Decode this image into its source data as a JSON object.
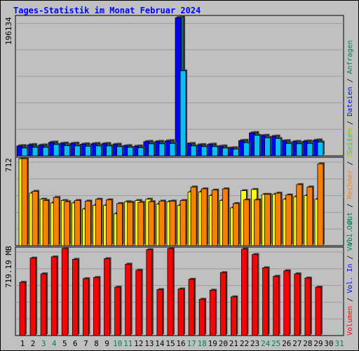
{
  "title": "Tages-Statistik im Monat Februar 2024",
  "colors": {
    "hits": "#00805a",
    "files": "#0000ff",
    "pages": "#00c0ff",
    "visits": "#ffff00",
    "sites": "#ff8000",
    "kbytes": "#ff0000",
    "weekend": "#00805a",
    "weekday": "#000000"
  },
  "legend_top": {
    "sep": "/",
    "hits": "Anfragen",
    "files": "Dateien",
    "pages": "Seiten"
  },
  "legend_mid": {
    "sep": "/",
    "visits": "Besuche",
    "sites": "Rechner",
    "out": "Vol. Out"
  },
  "legend_bot": {
    "sep": "/",
    "in": "Vol. In",
    "kbytes": "Volumen"
  },
  "chart_data": {
    "type": "bar",
    "categories": [
      "1",
      "2",
      "3",
      "4",
      "5",
      "6",
      "7",
      "8",
      "9",
      "10",
      "11",
      "12",
      "13",
      "14",
      "15",
      "16",
      "17",
      "18",
      "19",
      "20",
      "21",
      "22",
      "23",
      "24",
      "25",
      "26",
      "27",
      "28",
      "29",
      "30",
      "31"
    ],
    "weekend_days": [
      3,
      4,
      10,
      11,
      17,
      18,
      24,
      25,
      31
    ],
    "panels": [
      {
        "id": "hits-files-pages",
        "max_label": "196134",
        "ymax": 196134,
        "series": [
          {
            "name": "Anfragen",
            "values": [
              14500,
              16000,
              15500,
              19500,
              18000,
              18000,
              17000,
              17500,
              17500,
              16500,
              14500,
              14000,
              20500,
              20500,
              21500,
              196134,
              17500,
              16000,
              16500,
              14000,
              11500,
              22000,
              33000,
              29000,
              28000,
              21500,
              20500,
              21000,
              22500,
              null,
              null
            ]
          },
          {
            "name": "Dateien",
            "values": [
              14000,
              15500,
              15000,
              19000,
              17500,
              17500,
              16500,
              17000,
              17000,
              16000,
              14000,
              13500,
              20000,
              20000,
              21000,
              195000,
              17000,
              15500,
              16000,
              13500,
              11000,
              21500,
              32500,
              28500,
              27500,
              21000,
              20000,
              20500,
              22000,
              null,
              null
            ]
          },
          {
            "name": "Seiten",
            "values": [
              11000,
              12000,
              12000,
              16000,
              14500,
              14000,
              13500,
              14000,
              14000,
              13000,
              12000,
              11500,
              17000,
              17000,
              17500,
              120000,
              14000,
              13000,
              13000,
              11000,
              9500,
              18500,
              29000,
              25500,
              24500,
              17500,
              17000,
              17500,
              19500,
              null,
              null
            ]
          }
        ]
      },
      {
        "id": "visits-sites",
        "max_label": "712",
        "ymax": 712,
        "series": [
          {
            "name": "Besuche",
            "values": [
              712,
              430,
              380,
              350,
              370,
              350,
              300,
              330,
              330,
              260,
              360,
              370,
              380,
              340,
              360,
              330,
              440,
              440,
              410,
              370,
              310,
              450,
              460,
              420,
              420,
              380,
              400,
              410,
              380,
              null,
              null
            ]
          },
          {
            "name": "Rechner",
            "values": [
              712,
              445,
              370,
              395,
              360,
              370,
              365,
              380,
              375,
              345,
              355,
              355,
              360,
              365,
              365,
              370,
              480,
              465,
              455,
              465,
              345,
              375,
              375,
              420,
              430,
              415,
              500,
              480,
              670,
              null,
              null
            ]
          }
        ]
      },
      {
        "id": "volume",
        "max_label": "719.19 MB",
        "ymax": 719.19,
        "series": [
          {
            "name": "Volumen",
            "values": [
              440,
              640,
              510,
              650,
              719.19,
              630,
              470,
              480,
              635,
              400,
              590,
              540,
              710,
              380,
              719.19,
              385,
              465,
              300,
              375,
              520,
              320,
              715,
              670,
              560,
              490,
              535,
              510,
              475,
              400,
              null,
              null
            ]
          }
        ]
      }
    ]
  }
}
